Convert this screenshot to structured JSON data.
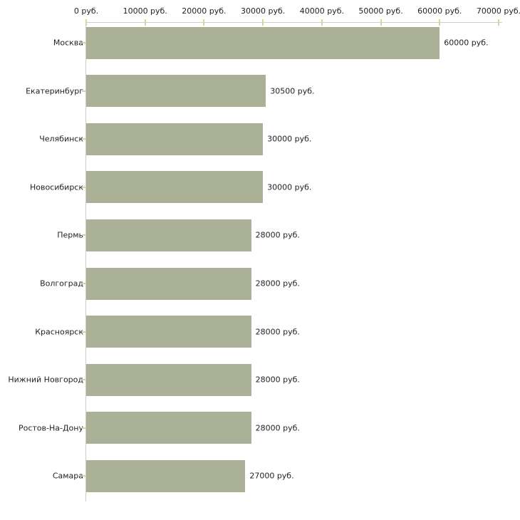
{
  "chart_data": {
    "type": "bar",
    "orientation": "horizontal",
    "title": "",
    "xlabel": "",
    "ylabel": "",
    "unit": "руб.",
    "categories": [
      "Москва",
      "Екатеринбург",
      "Челябинск",
      "Новосибирск",
      "Пермь",
      "Волгоград",
      "Красноярск",
      "Нижний Новгород",
      "Ростов-На-Дону",
      "Самара"
    ],
    "values": [
      60000,
      30500,
      30000,
      30000,
      28000,
      28000,
      28000,
      28000,
      28000,
      27000
    ],
    "value_labels": [
      "60000 руб.",
      "30500 руб.",
      "30000 руб.",
      "30000 руб.",
      "28000 руб.",
      "28000 руб.",
      "28000 руб.",
      "28000 руб.",
      "28000 руб.",
      "27000 руб."
    ],
    "x_tick_values": [
      0,
      10000,
      20000,
      30000,
      40000,
      50000,
      60000,
      70000
    ],
    "x_tick_labels": [
      "0 руб.",
      "10000 руб.",
      "20000 руб.",
      "30000 руб.",
      "40000 руб.",
      "50000 руб.",
      "60000 руб.",
      "70000 руб."
    ],
    "xlim": [
      0,
      70000
    ],
    "grid": false,
    "legend": false,
    "axis_position": "top",
    "colors": {
      "bar": "#aab196",
      "axis": "#cccccc",
      "tick": "#d4d4a4",
      "text": "#222222",
      "background": "#ffffff"
    }
  }
}
